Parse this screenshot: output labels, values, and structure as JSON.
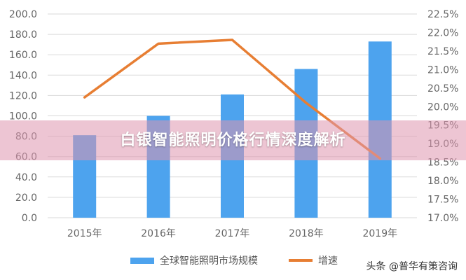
{
  "colors": {
    "bar": "#4DA3EE",
    "line": "#E77E33",
    "grid": "#D9D9D9",
    "axis_text": "#666666"
  },
  "chart_data": {
    "type": "bar",
    "categories": [
      "2015年",
      "2016年",
      "2017年",
      "2018年",
      "2019年"
    ],
    "series": [
      {
        "name": "全球智能照明市场规模",
        "type": "bar",
        "axis": "left",
        "values": [
          81,
          100,
          121,
          146,
          173
        ]
      },
      {
        "name": "增速",
        "type": "line",
        "axis": "right",
        "values": [
          20.25,
          21.7,
          21.8,
          20.1,
          18.6
        ]
      }
    ],
    "y_left": {
      "min": 0,
      "max": 200,
      "step": 20,
      "tick_labels": [
        "0.0",
        "20.0",
        "40.0",
        "60.0",
        "80.0",
        "100.0",
        "120.0",
        "140.0",
        "160.0",
        "180.0",
        "200.0"
      ]
    },
    "y_right": {
      "min": 17.0,
      "max": 22.5,
      "step": 0.5,
      "tick_labels": [
        "17.0%",
        "17.5%",
        "18.0%",
        "18.5%",
        "19.0%",
        "19.5%",
        "20.0%",
        "20.5%",
        "21.0%",
        "21.5%",
        "22.0%",
        "22.5%"
      ]
    },
    "grid": true,
    "legend_position": "bottom"
  },
  "overlay": {
    "title": "白银智能照明价格行情深度解析"
  },
  "watermark": "头条 @普华有策咨询"
}
